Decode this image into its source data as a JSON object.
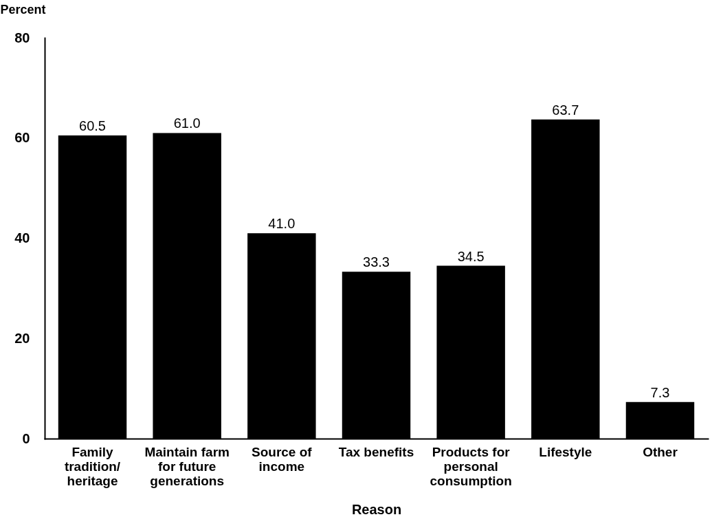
{
  "chart_data": {
    "type": "bar",
    "xlabel": "Reason",
    "ylabel": "Percent",
    "categories": [
      "Family tradition/ heritage",
      "Maintain farm for future generations",
      "Source of income",
      "Tax benefits",
      "Products for personal consumption",
      "Lifestyle",
      "Other"
    ],
    "values": [
      60.5,
      61.0,
      41.0,
      33.3,
      34.5,
      63.7,
      7.3
    ],
    "value_labels": [
      "60.5",
      "61.0",
      "41.0",
      "33.3",
      "34.5",
      "63.7",
      "7.3"
    ],
    "color": "#000000",
    "ylim": [
      0,
      80
    ],
    "yticks": [
      0,
      20,
      40,
      60,
      80
    ],
    "grid": false
  }
}
